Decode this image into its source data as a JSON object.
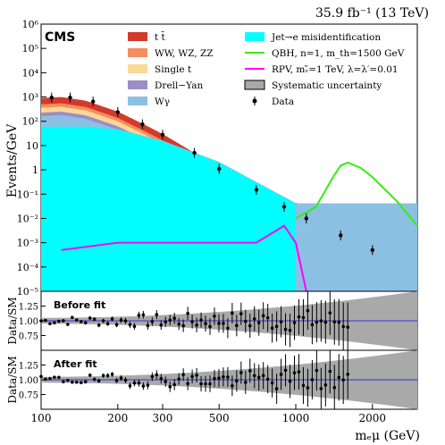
{
  "header": {
    "experiment": "CMS",
    "lumi": "35.9 fb⁻¹ (13 TeV)"
  },
  "main_panel": {
    "ylabel": "Events/GeV",
    "y_ticks": [
      "10⁻⁵",
      "10⁻⁴",
      "10⁻³",
      "10⁻²",
      "10⁻¹",
      "1",
      "10",
      "10²",
      "10³",
      "10⁴",
      "10⁵",
      "10⁶"
    ],
    "legend_left": [
      {
        "label": "t t̄",
        "color": "#d23a2b"
      },
      {
        "label": "WW, WZ, ZZ",
        "color": "#f58d5f"
      },
      {
        "label": "Single t",
        "color": "#fcd796"
      },
      {
        "label": "Drell−Yan",
        "color": "#9b8ec7"
      },
      {
        "label": "Wγ",
        "color": "#8cc0e3"
      }
    ],
    "legend_right": [
      {
        "label": "Jet→e misidentification",
        "color": "#00ffff",
        "kind": "box"
      },
      {
        "label": "QBH, n=1, m_th=1500 GeV",
        "color": "#33ee11",
        "kind": "line"
      },
      {
        "label": "RPV, mᵥ̃=1 TeV, λ=λ′=0.01",
        "color": "#ff00ff",
        "kind": "line"
      },
      {
        "label": "Systematic uncertainty",
        "color": "#a9a9a9",
        "kind": "box"
      },
      {
        "label": "Data",
        "color": "#000000",
        "kind": "marker"
      }
    ]
  },
  "ratio_panels": [
    {
      "title": "Before fit",
      "ylabel": "Data/SM",
      "y_ticks": [
        "0.75",
        "1.00",
        "1.25"
      ]
    },
    {
      "title": "After fit",
      "ylabel": "Data/SM",
      "y_ticks": [
        "0.75",
        "1.00",
        "1.25"
      ]
    }
  ],
  "x_axis": {
    "label": "mₑμ (GeV)",
    "tick_labels": [
      "100",
      "200",
      "300",
      "500",
      "1000",
      "2000"
    ]
  },
  "chart_data": {
    "type": "bar",
    "x_scale": "log",
    "y_scale": "log",
    "xlim": [
      100,
      3000
    ],
    "ylim": [
      1e-05,
      1000000.0
    ],
    "ratio_ylim": [
      0.5,
      1.5
    ],
    "total_background": {
      "x": [
        100,
        120,
        150,
        200,
        250,
        300,
        400,
        500,
        700,
        1000,
        1500,
        2000,
        3000
      ],
      "y": [
        900,
        1000,
        700,
        250,
        80,
        30,
        5,
        1.2,
        0.15,
        0.015,
        0.002,
        0.0005,
        0.0001
      ]
    },
    "jet_e_misid": {
      "x": [
        100,
        150,
        200,
        300,
        500,
        700,
        1000
      ],
      "y": [
        60,
        60,
        45,
        15,
        2,
        0.3,
        0.04
      ]
    },
    "qbh_signal": {
      "x": [
        1000,
        1200,
        1400,
        1500,
        1600,
        1800,
        2000,
        2500,
        3000
      ],
      "y": [
        0.01,
        0.03,
        0.5,
        1.5,
        2.0,
        1.2,
        0.5,
        0.05,
        0.005
      ]
    },
    "rpv_signal": {
      "x": [
        120,
        200,
        300,
        500,
        700,
        900,
        1000,
        1100
      ],
      "y": [
        0.0005,
        0.001,
        0.001,
        0.001,
        0.001,
        0.005,
        0.001,
        1e-05
      ]
    },
    "data": {
      "x": [
        110,
        130,
        160,
        200,
        250,
        300,
        400,
        500,
        700,
        900,
        1100,
        1500,
        2000
      ],
      "y": [
        950,
        950,
        650,
        240,
        75,
        28,
        5,
        1.1,
        0.15,
        0.03,
        0.01,
        0.002,
        0.0005
      ]
    }
  }
}
